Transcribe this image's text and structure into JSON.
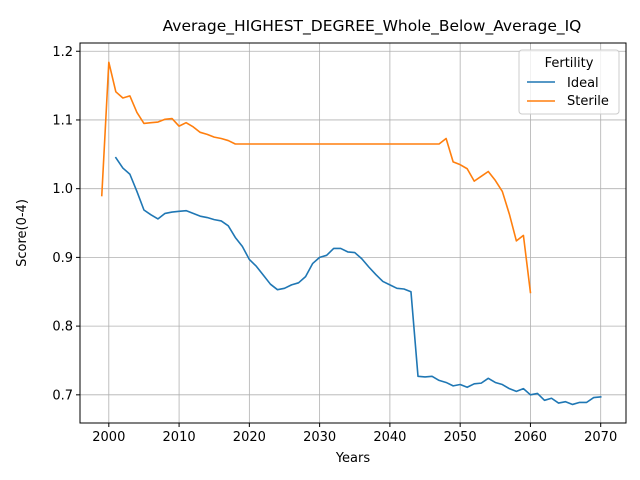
{
  "chart_data": {
    "type": "line",
    "title": "Average_HIGHEST_DEGREE_Whole_Below_Average_IQ",
    "xlabel": "Years",
    "ylabel": "Score(0-4)",
    "xlim": [
      1995.9,
      2073.6
    ],
    "ylim": [
      0.659,
      1.212
    ],
    "x_ticks": [
      2000,
      2010,
      2020,
      2030,
      2040,
      2050,
      2060,
      2070
    ],
    "y_ticks": [
      0.7,
      0.8,
      0.9,
      1.0,
      1.1,
      1.2
    ],
    "x_tick_labels": [
      "2000",
      "2010",
      "2020",
      "2030",
      "2040",
      "2050",
      "2060",
      "2070"
    ],
    "y_tick_labels": [
      "0.7",
      "0.8",
      "0.9",
      "1.0",
      "1.1",
      "1.2"
    ],
    "grid": true,
    "legend": {
      "title": "Fertility",
      "position": "top-right"
    },
    "series": [
      {
        "name": "Ideal",
        "color": "#1f77b4",
        "x": [
          2001,
          2002,
          2003,
          2004,
          2005,
          2006,
          2007,
          2008,
          2009,
          2010,
          2011,
          2012,
          2013,
          2014,
          2015,
          2016,
          2017,
          2018,
          2019,
          2020,
          2021,
          2022,
          2023,
          2024,
          2025,
          2026,
          2027,
          2028,
          2029,
          2030,
          2031,
          2032,
          2033,
          2034,
          2035,
          2036,
          2037,
          2038,
          2039,
          2040,
          2041,
          2042,
          2043,
          2044,
          2045,
          2046,
          2047,
          2048,
          2049,
          2050,
          2051,
          2052,
          2053,
          2054,
          2055,
          2056,
          2057,
          2058,
          2059,
          2060,
          2061,
          2062,
          2063,
          2064,
          2065,
          2066,
          2067,
          2068,
          2069,
          2070
        ],
        "values": [
          1.045,
          1.03,
          1.021,
          0.996,
          0.969,
          0.962,
          0.956,
          0.964,
          0.966,
          0.967,
          0.968,
          0.964,
          0.96,
          0.958,
          0.955,
          0.953,
          0.946,
          0.929,
          0.916,
          0.897,
          0.887,
          0.874,
          0.861,
          0.853,
          0.855,
          0.86,
          0.863,
          0.872,
          0.891,
          0.9,
          0.903,
          0.913,
          0.913,
          0.908,
          0.907,
          0.898,
          0.886,
          0.875,
          0.865,
          0.86,
          0.855,
          0.854,
          0.85,
          0.727,
          0.726,
          0.727,
          0.721,
          0.718,
          0.713,
          0.715,
          0.711,
          0.716,
          0.717,
          0.724,
          0.718,
          0.715,
          0.709,
          0.705,
          0.709,
          0.7,
          0.702,
          0.692,
          0.695,
          0.688,
          0.69,
          0.686,
          0.689,
          0.689,
          0.696,
          0.697
        ]
      },
      {
        "name": "Sterile",
        "color": "#ff7f0e",
        "x": [
          1999,
          2000,
          2001,
          2002,
          2003,
          2004,
          2005,
          2006,
          2007,
          2008,
          2009,
          2010,
          2011,
          2012,
          2013,
          2014,
          2015,
          2016,
          2017,
          2018,
          2019,
          2020,
          2021,
          2022,
          2023,
          2024,
          2025,
          2026,
          2027,
          2028,
          2029,
          2030,
          2031,
          2032,
          2033,
          2034,
          2035,
          2036,
          2037,
          2038,
          2039,
          2040,
          2041,
          2042,
          2043,
          2044,
          2045,
          2046,
          2047,
          2048,
          2049,
          2050,
          2051,
          2052,
          2053,
          2054,
          2055,
          2056,
          2057,
          2058,
          2059,
          2060
        ],
        "values": [
          0.99,
          1.184,
          1.141,
          1.132,
          1.135,
          1.111,
          1.095,
          1.096,
          1.097,
          1.101,
          1.102,
          1.091,
          1.096,
          1.09,
          1.082,
          1.079,
          1.075,
          1.073,
          1.07,
          1.065,
          1.065,
          1.065,
          1.065,
          1.065,
          1.065,
          1.065,
          1.065,
          1.065,
          1.065,
          1.065,
          1.065,
          1.065,
          1.065,
          1.065,
          1.065,
          1.065,
          1.065,
          1.065,
          1.065,
          1.065,
          1.065,
          1.065,
          1.065,
          1.065,
          1.065,
          1.065,
          1.065,
          1.065,
          1.065,
          1.073,
          1.039,
          1.035,
          1.029,
          1.011,
          1.018,
          1.025,
          1.012,
          0.996,
          0.963,
          0.924,
          0.932,
          0.849
        ]
      }
    ]
  }
}
